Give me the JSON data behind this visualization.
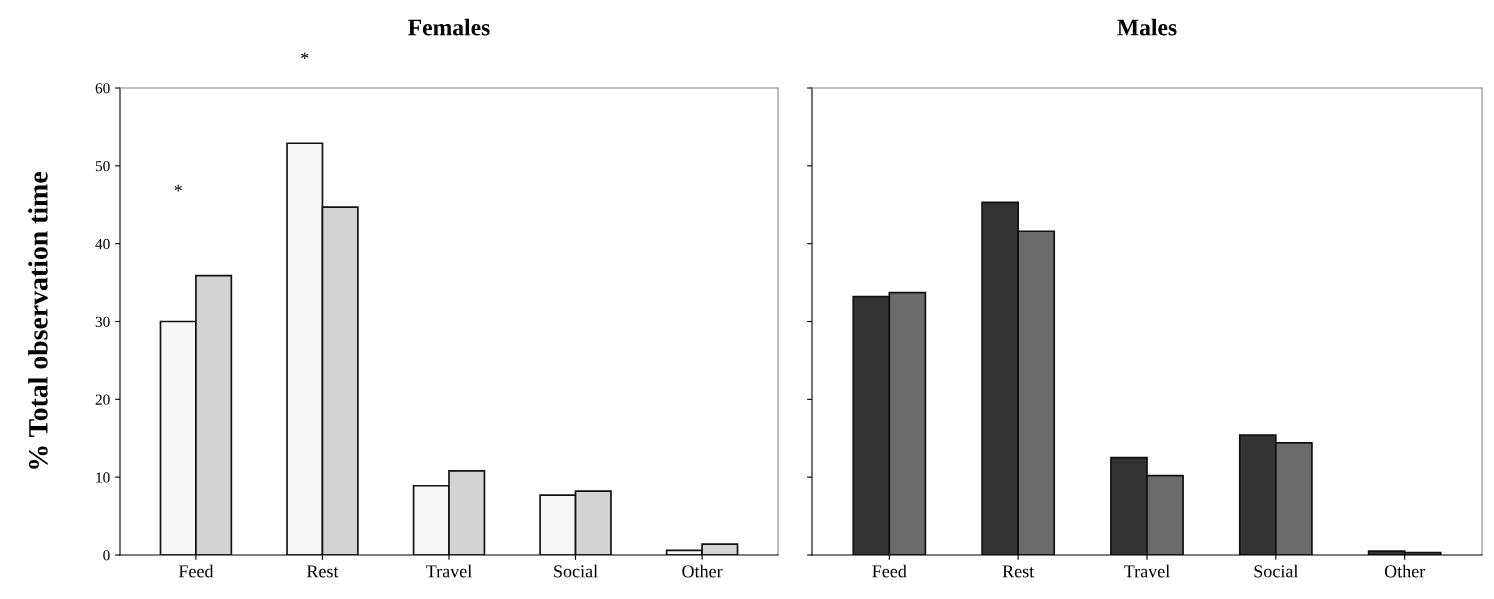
{
  "chart_data": [
    {
      "type": "bar",
      "title": "Females",
      "ylabel": "% Total observation time",
      "categories": [
        "Feed",
        "Rest",
        "Travel",
        "Social",
        "Other"
      ],
      "series": [
        {
          "color": "#f7f7f7",
          "values": [
            30.0,
            52.9,
            8.9,
            7.7,
            0.6
          ]
        },
        {
          "color": "#d3d3d3",
          "values": [
            35.9,
            44.7,
            10.8,
            8.2,
            1.4
          ]
        }
      ],
      "ylim": [
        0,
        60
      ],
      "yticks": [
        0,
        10,
        20,
        30,
        40,
        50,
        60
      ],
      "grid": false,
      "annotations": [
        "*",
        "*"
      ]
    },
    {
      "type": "bar",
      "title": "Males",
      "categories": [
        "Feed",
        "Rest",
        "Travel",
        "Social",
        "Other"
      ],
      "series": [
        {
          "color": "#333333",
          "values": [
            33.2,
            45.3,
            12.5,
            15.4,
            0.5
          ]
        },
        {
          "color": "#6b6b6b",
          "values": [
            33.7,
            41.6,
            10.2,
            14.4,
            0.3
          ]
        }
      ],
      "ylim": [
        0,
        60
      ],
      "yticks": [
        0,
        10,
        20,
        30,
        40,
        50,
        60
      ],
      "grid": false,
      "tick_labels": "x"
    }
  ]
}
